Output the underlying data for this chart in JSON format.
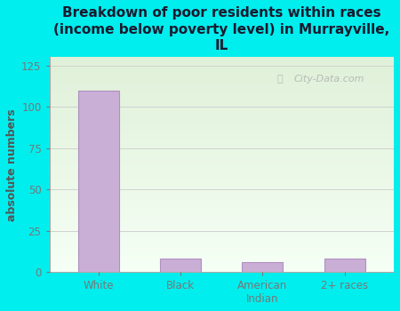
{
  "categories": [
    "White",
    "Black",
    "American\nIndian",
    "2+ races"
  ],
  "values": [
    110,
    8,
    6,
    8
  ],
  "bar_color": "#c9aed6",
  "bar_edge_color": "#b090c0",
  "title": "Breakdown of poor residents within races\n(income below poverty level) in Murrayville,\nIL",
  "ylabel": "absolute numbers",
  "ylim": [
    0,
    130
  ],
  "yticks": [
    0,
    25,
    50,
    75,
    100,
    125
  ],
  "background_color": "#00eeee",
  "plot_bg_top": "#dff0d8",
  "plot_bg_bottom": "#f5fff5",
  "grid_color": "#cccccc",
  "title_fontsize": 11,
  "ylabel_fontsize": 9,
  "tick_fontsize": 8.5,
  "tick_color": "#777777",
  "title_color": "#1a1a2e",
  "ylabel_color": "#555555",
  "watermark_text": "City-Data.com",
  "watermark_color": "#b0b0b0"
}
